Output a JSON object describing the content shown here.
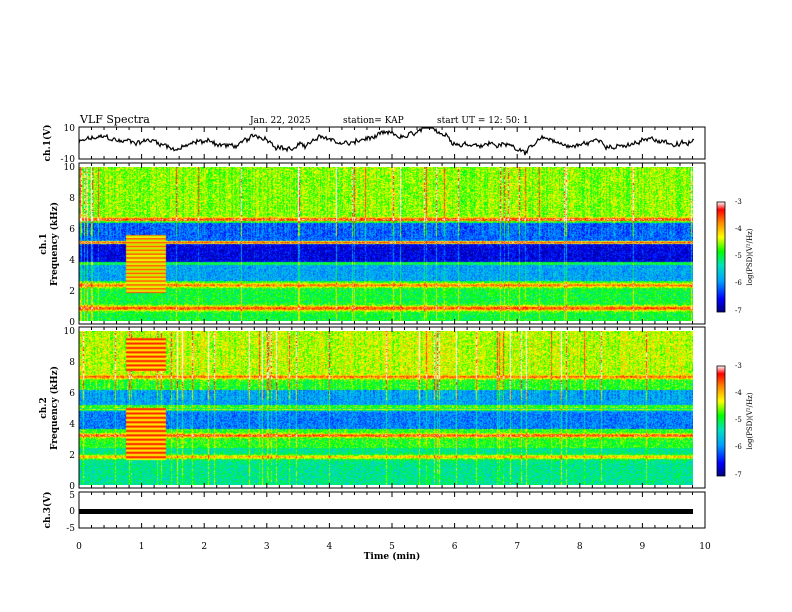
{
  "header": {
    "title": "VLF Spectra",
    "date": "Jan. 22, 2025",
    "station": "station= KAP",
    "start": "start  UT =   12: 50: 1"
  },
  "chart_data": [
    {
      "type": "line",
      "name": "ch1-waveform",
      "ylabel": "ch.1(V)",
      "ylim": [
        -10,
        10
      ],
      "y_ticks": [
        "10",
        "-10"
      ],
      "xlim": [
        0,
        10
      ]
    },
    {
      "type": "heatmap",
      "name": "ch1-spectrogram",
      "ylabel": "ch.1\nFrequency (kHz)",
      "ylabel_channel": "ch.1",
      "ylabel_freq": "Frequency (kHz)",
      "ylim": [
        0,
        10
      ],
      "y_ticks": [
        "0",
        "2",
        "4",
        "6",
        "8",
        "10"
      ],
      "xlim": [
        0,
        9.8
      ],
      "colorbar": {
        "label": "log(PSD)(V²/Hz)",
        "range": [
          -7,
          -3
        ],
        "ticks": [
          "-3",
          "-4",
          "-5",
          "-6",
          "-7"
        ]
      }
    },
    {
      "type": "heatmap",
      "name": "ch2-spectrogram",
      "ylabel_channel": "ch.2",
      "ylabel_freq": "Frequency (kHz)",
      "ylim": [
        0,
        10
      ],
      "y_ticks": [
        "0",
        "2",
        "4",
        "6",
        "8",
        "10"
      ],
      "xlim": [
        0,
        9.8
      ],
      "colorbar": {
        "label": "log(PSD)(V²/Hz)",
        "range": [
          -7,
          -3
        ],
        "ticks": [
          "-3",
          "-4",
          "-5",
          "-6",
          "-7"
        ]
      }
    },
    {
      "type": "line",
      "name": "ch3-signal",
      "ylabel": "ch.3(V)",
      "ylim": [
        -5,
        5
      ],
      "y_ticks": [
        "5",
        "0",
        "-5"
      ],
      "level": 0,
      "xlim": [
        0,
        9.8
      ]
    }
  ],
  "x_axis": {
    "label": "Time  (min)",
    "range": [
      0,
      10
    ],
    "ticks": [
      "0",
      "1",
      "2",
      "3",
      "4",
      "5",
      "6",
      "7",
      "8",
      "9",
      "10"
    ]
  }
}
